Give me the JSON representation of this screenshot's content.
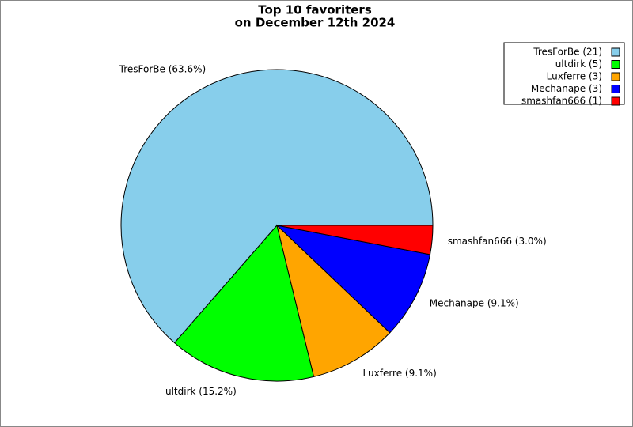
{
  "chart_data": {
    "type": "pie",
    "title": [
      "Top 10 favoriters",
      "on December 12th 2024"
    ],
    "values": [
      63.6,
      15.2,
      9.1,
      9.1,
      3.0
    ],
    "value_labels": [
      "TresForBe (63.6%)",
      "ultdirk (15.2%)",
      "Luxferre (9.1%)",
      "Mechanape (9.1%)",
      "smashfan666 (3.0%)"
    ],
    "legend_labels": [
      "TresForBe (21)",
      "ultdirk (5)",
      "Luxferre (3)",
      "Mechanape (3)",
      "smashfan666 (1)"
    ],
    "colors": [
      "#87ceeb",
      "#00ff00",
      "#ffa500",
      "#0000ff",
      "#ff0000"
    ],
    "legend": "upper right"
  }
}
